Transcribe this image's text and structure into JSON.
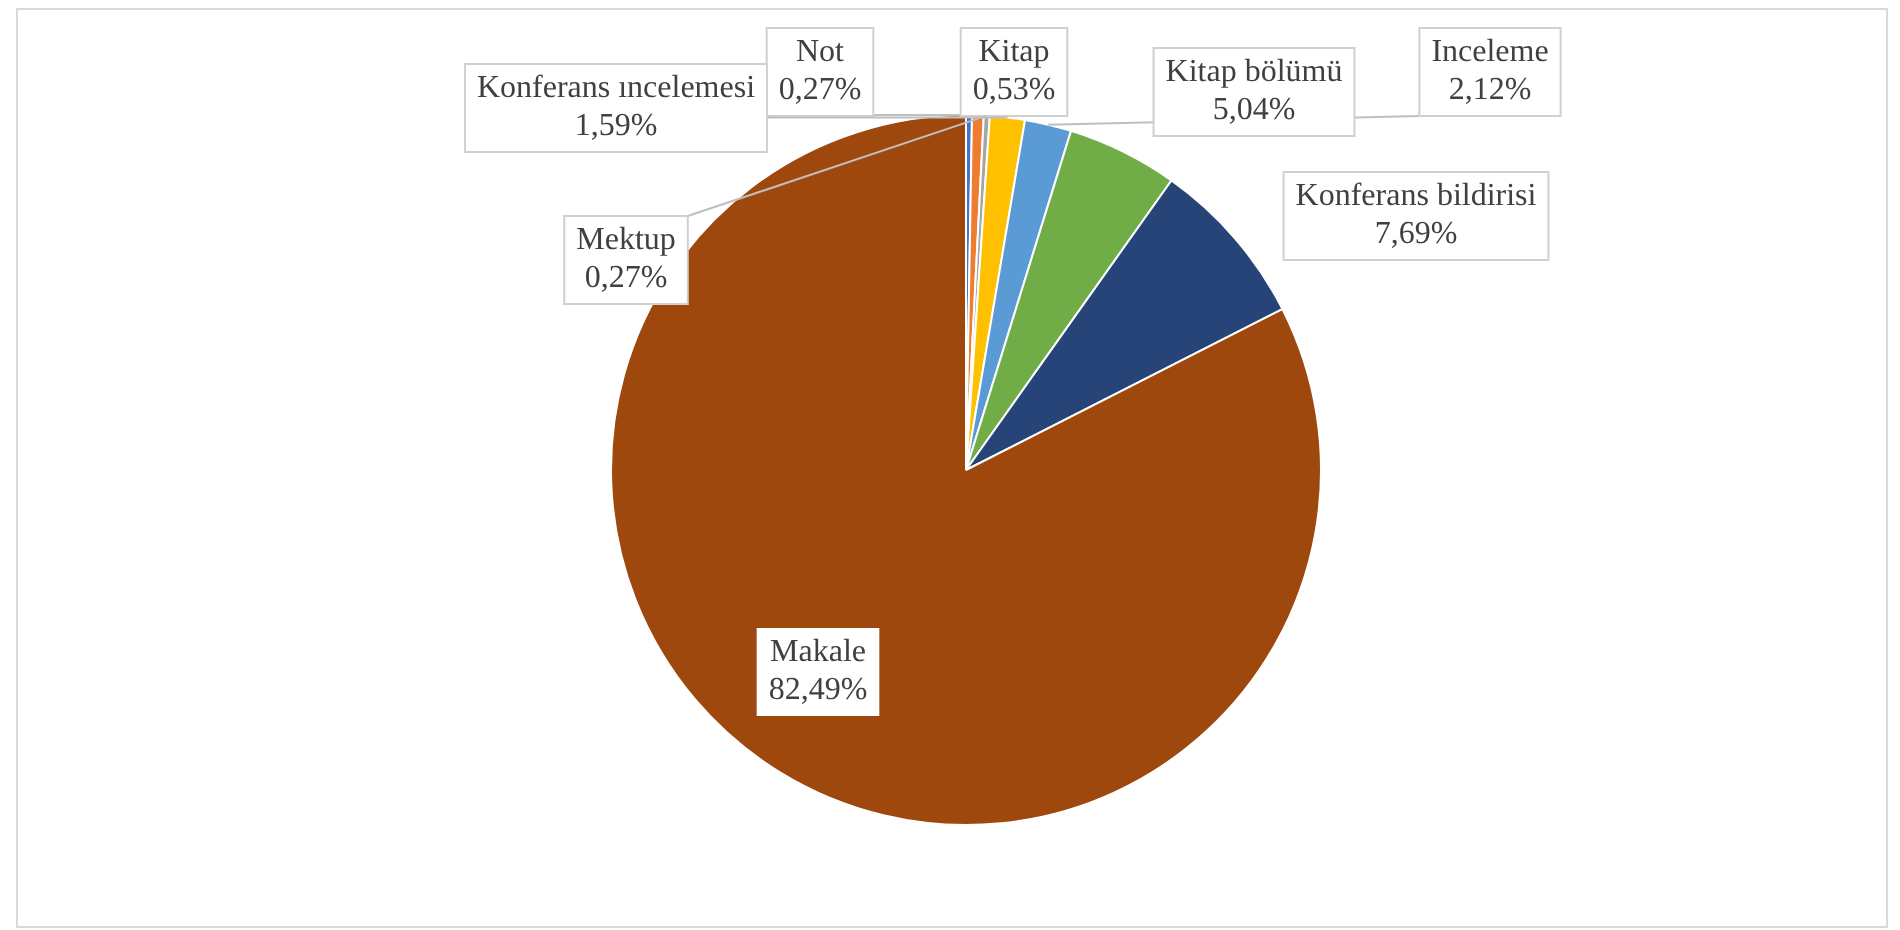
{
  "chart_data": {
    "type": "pie",
    "categories": [
      "Not",
      "Kitap",
      "Mektup",
      "Konferans ıncelemesi",
      "Inceleme",
      "Kitap bölümü",
      "Konferans bildirisi",
      "Makale"
    ],
    "values": [
      0.27,
      0.53,
      0.27,
      1.59,
      2.12,
      5.04,
      7.69,
      82.49
    ],
    "value_labels": [
      "0,27%",
      "0,53%",
      "0,27%",
      "1,59%",
      "2,12%",
      "5,04%",
      "7,69%",
      "82,49%"
    ],
    "colors": [
      "#4472c4",
      "#ed7d31",
      "#a5a5a5",
      "#ffc000",
      "#5b9bd5",
      "#70ad47",
      "#264478",
      "#9e480e"
    ],
    "legend": false
  }
}
